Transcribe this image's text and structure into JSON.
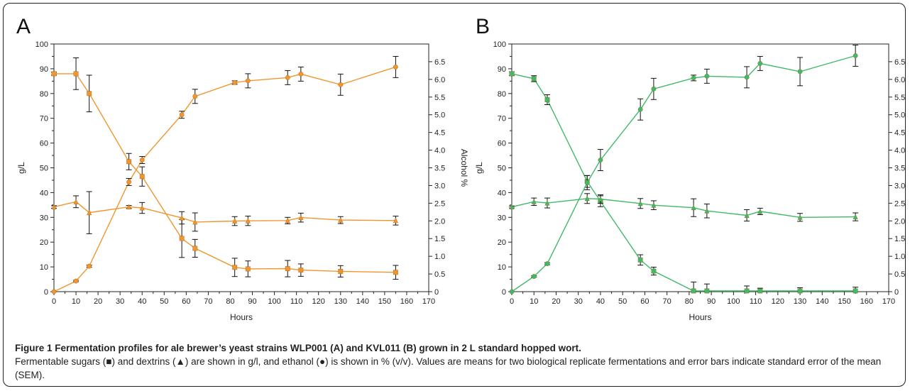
{
  "caption": {
    "title": "Figure 1 Fermentation profiles for ale brewer’s yeast strains WLP001 (A) and KVL011 (B) grown in 2 L standard hopped wort.",
    "text": "Fermentable sugars (■) and dextrins (▲) are shown in g/l, and ethanol (●) is shown in % (v/v). Values are means for two biological replicate fermentations and error bars indicate standard error of the mean (SEM)."
  },
  "chart_data": [
    {
      "type": "line",
      "panel": "A",
      "color": "#f0962e",
      "xlabel": "Hours",
      "ylabel": "g/L",
      "y2label": "Alcohol %",
      "xlim": [
        0,
        170
      ],
      "ylim": [
        0,
        100
      ],
      "y2lim": [
        0,
        7
      ],
      "x_ticks": [
        0,
        10,
        20,
        30,
        40,
        50,
        60,
        70,
        80,
        90,
        100,
        110,
        120,
        130,
        140,
        150,
        160,
        170
      ],
      "y_ticks": [
        0,
        10,
        20,
        30,
        40,
        50,
        60,
        70,
        80,
        90,
        100
      ],
      "y2_ticks": [
        "0",
        "0.5",
        "1.0",
        "1.5",
        "2.0",
        "2.5",
        "3.0",
        "3.5",
        "4.0",
        "4.5",
        "5.0",
        "5.5",
        "6.0",
        "6.5"
      ],
      "series": [
        {
          "marker": "square",
          "axis": "left",
          "x": [
            0,
            10,
            16,
            34,
            40,
            58,
            64,
            82,
            88,
            106,
            112,
            130,
            155
          ],
          "y": [
            88,
            88,
            80,
            52.5,
            46.5,
            21.5,
            17.5,
            9.8,
            9.2,
            9.3,
            8.7,
            8.2,
            7.8
          ],
          "err": [
            0.6,
            6.4,
            7.4,
            3.3,
            3.9,
            7.7,
            3.6,
            3.7,
            3.2,
            3.3,
            2.5,
            2.3,
            2.8
          ]
        },
        {
          "marker": "triangle",
          "axis": "left",
          "x": [
            0,
            10,
            16,
            34,
            40,
            58,
            64,
            82,
            88,
            106,
            112,
            130,
            155
          ],
          "y": [
            34.2,
            36.3,
            31.9,
            34.2,
            33.8,
            29.8,
            28.1,
            28.5,
            28.6,
            28.7,
            29.9,
            28.9,
            28.7
          ],
          "err": [
            0.5,
            2.4,
            8.5,
            0.6,
            2.2,
            2.5,
            3.7,
            1.8,
            1.9,
            1.3,
            1.8,
            1.4,
            1.8
          ]
        },
        {
          "marker": "circle",
          "axis": "right",
          "x": [
            0,
            10,
            16,
            34,
            40,
            58,
            64,
            82,
            88,
            106,
            112,
            130,
            155
          ],
          "y": [
            0,
            0.3,
            0.72,
            3.1,
            3.72,
            5.0,
            5.52,
            5.91,
            5.96,
            6.05,
            6.15,
            5.85,
            6.35
          ],
          "err": [
            0,
            0.02,
            0.03,
            0.1,
            0.1,
            0.1,
            0.2,
            0.05,
            0.2,
            0.2,
            0.2,
            0.3,
            0.3
          ]
        }
      ]
    },
    {
      "type": "line",
      "panel": "B",
      "color": "#3fba68",
      "xlabel": "Hours",
      "ylabel": "g/L",
      "y2label": "Alcohol %",
      "xlim": [
        0,
        170
      ],
      "ylim": [
        0,
        100
      ],
      "y2lim": [
        0,
        7
      ],
      "x_ticks": [
        0,
        10,
        20,
        30,
        40,
        50,
        60,
        70,
        80,
        90,
        100,
        110,
        120,
        130,
        140,
        150,
        160,
        170
      ],
      "y_ticks": [
        0,
        10,
        20,
        30,
        40,
        50,
        60,
        70,
        80,
        90,
        100
      ],
      "y2_ticks": [
        "0",
        "0.5",
        "1.0",
        "1.5",
        "2.0",
        "2.5",
        "3.0",
        "3.5",
        "4.0",
        "4.5",
        "5.0",
        "5.5",
        "6.0",
        "6.5"
      ],
      "series": [
        {
          "marker": "square",
          "axis": "left",
          "x": [
            0,
            10,
            16,
            34,
            40,
            58,
            64,
            82,
            88,
            106,
            112,
            130,
            155
          ],
          "y": [
            88,
            86,
            77.5,
            44.5,
            36.5,
            12.8,
            8.3,
            0.3,
            0.3,
            0.3,
            0.3,
            0.3,
            0.3
          ],
          "err": [
            0.8,
            1.2,
            2.0,
            2.4,
            2.2,
            2.1,
            1.6,
            3.6,
            2.8,
            2.0,
            1.1,
            1.3,
            1.5
          ]
        },
        {
          "marker": "triangle",
          "axis": "left",
          "x": [
            0,
            10,
            16,
            34,
            40,
            58,
            64,
            82,
            88,
            106,
            112,
            130,
            155
          ],
          "y": [
            34.2,
            36.3,
            35.8,
            37.6,
            37.4,
            35.6,
            34.9,
            33.9,
            32.6,
            30.8,
            32.4,
            30.0,
            30.2
          ],
          "err": [
            0.4,
            1.5,
            2.0,
            2.0,
            1.7,
            2.0,
            1.8,
            3.6,
            2.8,
            2.3,
            1.3,
            1.6,
            1.6
          ]
        },
        {
          "marker": "circle",
          "axis": "right",
          "x": [
            0,
            10,
            16,
            34,
            40,
            58,
            64,
            82,
            88,
            106,
            112,
            130,
            155
          ],
          "y": [
            0,
            0.43,
            0.79,
            3.08,
            3.72,
            5.15,
            5.73,
            6.04,
            6.09,
            6.06,
            6.45,
            6.22,
            6.67
          ],
          "err": [
            0,
            0.02,
            0.03,
            0.2,
            0.3,
            0.3,
            0.3,
            0.08,
            0.2,
            0.3,
            0.2,
            0.4,
            0.3
          ]
        }
      ]
    }
  ]
}
